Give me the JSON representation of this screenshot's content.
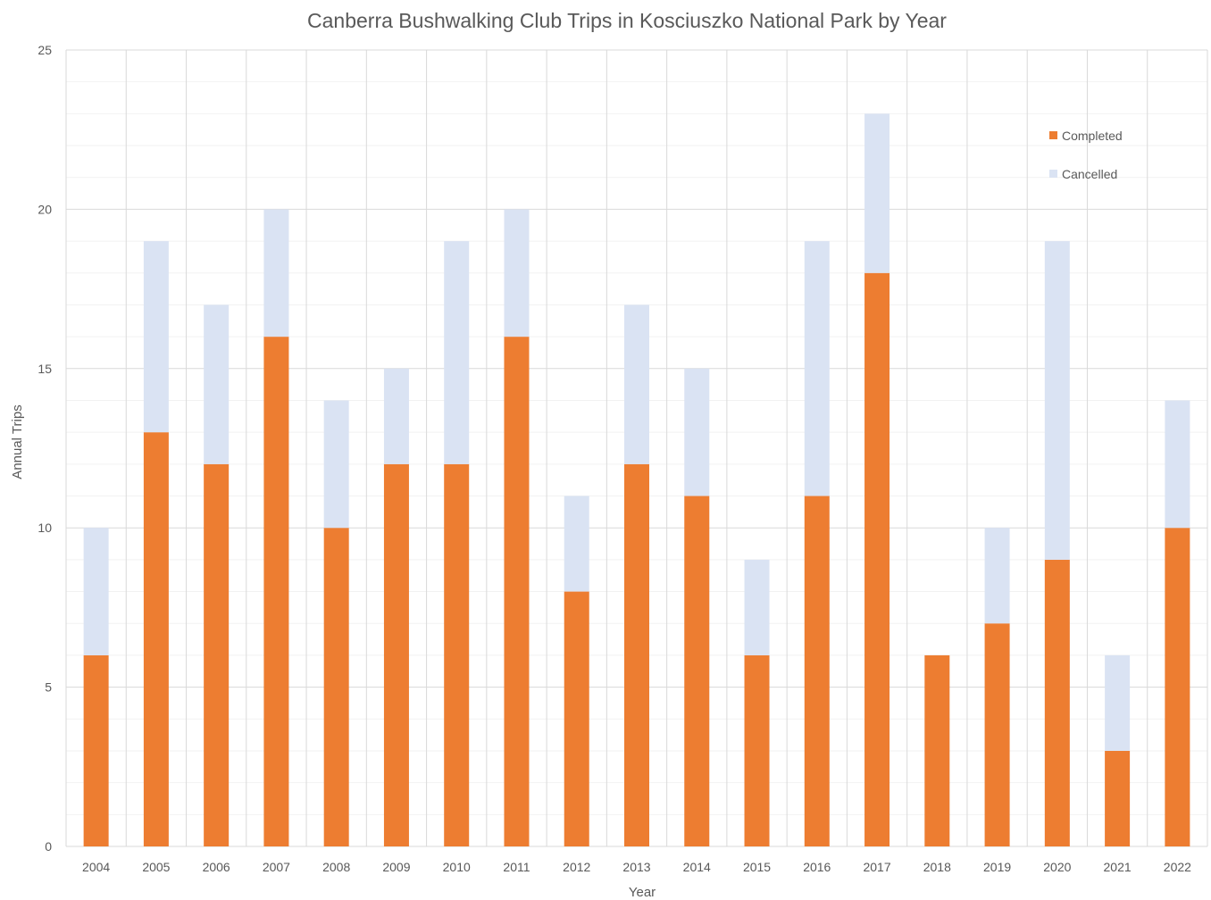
{
  "chart_data": {
    "type": "bar",
    "stacked": true,
    "title": "Canberra Bushwalking Club Trips in Kosciuszko National Park by Year",
    "xlabel": "Year",
    "ylabel": "Annual Trips",
    "ylim": [
      0,
      25
    ],
    "yticks": [
      0,
      5,
      10,
      15,
      20,
      25
    ],
    "grid": true,
    "legend_position": "top-right",
    "categories": [
      "2004",
      "2005",
      "2006",
      "2007",
      "2008",
      "2009",
      "2010",
      "2011",
      "2012",
      "2013",
      "2014",
      "2015",
      "2016",
      "2017",
      "2018",
      "2019",
      "2020",
      "2021",
      "2022"
    ],
    "series": [
      {
        "name": "Completed",
        "color": "#ED7D31",
        "values": [
          6,
          13,
          12,
          16,
          10,
          12,
          12,
          16,
          8,
          12,
          11,
          6,
          11,
          18,
          6,
          7,
          9,
          3,
          10
        ]
      },
      {
        "name": "Cancelled",
        "color": "#DAE3F3",
        "values": [
          4,
          6,
          5,
          4,
          4,
          3,
          7,
          4,
          3,
          5,
          4,
          3,
          8,
          5,
          0,
          3,
          10,
          3,
          4
        ]
      }
    ]
  }
}
